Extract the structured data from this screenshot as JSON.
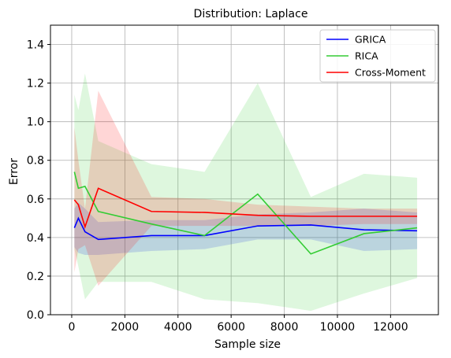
{
  "chart_data": {
    "type": "line",
    "title": "Distribution: Laplace",
    "xlabel": "Sample size",
    "ylabel": "Error",
    "xlim": [
      -800,
      13800
    ],
    "ylim": [
      0.0,
      1.5
    ],
    "xticks": [
      0,
      2000,
      4000,
      6000,
      8000,
      10000,
      12000
    ],
    "yticks": [
      0.0,
      0.2,
      0.4,
      0.6,
      0.8,
      1.0,
      1.2,
      1.4
    ],
    "xtick_labels": [
      "0",
      "2000",
      "4000",
      "6000",
      "8000",
      "10000",
      "12000"
    ],
    "ytick_labels": [
      "0.0",
      "0.2",
      "0.4",
      "0.6",
      "0.8",
      "1.0",
      "1.2",
      "1.4"
    ],
    "grid": true,
    "legend_position": "top-right",
    "x": [
      100,
      250,
      500,
      1000,
      3000,
      5000,
      7000,
      9000,
      11000,
      13000
    ],
    "series": [
      {
        "name": "GRICA",
        "color": "#0000ff",
        "values": [
          0.45,
          0.5,
          0.43,
          0.39,
          0.41,
          0.41,
          0.46,
          0.465,
          0.44,
          0.435
        ],
        "lower": [
          0.35,
          0.32,
          0.31,
          0.31,
          0.33,
          0.34,
          0.39,
          0.39,
          0.33,
          0.34
        ],
        "upper": [
          0.55,
          0.58,
          0.55,
          0.48,
          0.49,
          0.49,
          0.52,
          0.53,
          0.55,
          0.53
        ]
      },
      {
        "name": "RICA",
        "color": "#33cc33",
        "values": [
          0.74,
          0.655,
          0.665,
          0.535,
          0.47,
          0.41,
          0.625,
          0.315,
          0.42,
          0.45
        ],
        "lower": [
          0.34,
          0.25,
          0.08,
          0.17,
          0.17,
          0.08,
          0.06,
          0.02,
          0.11,
          0.19
        ],
        "upper": [
          1.14,
          1.06,
          1.25,
          0.9,
          0.78,
          0.74,
          1.2,
          0.61,
          0.73,
          0.71
        ]
      },
      {
        "name": "Cross-Moment",
        "color": "#ff0000",
        "values": [
          0.595,
          0.57,
          0.455,
          0.655,
          0.535,
          0.53,
          0.515,
          0.51,
          0.51,
          0.51
        ],
        "lower": [
          0.22,
          0.34,
          0.36,
          0.15,
          0.46,
          0.46,
          0.46,
          0.46,
          0.47,
          0.47
        ],
        "upper": [
          0.97,
          0.8,
          0.55,
          1.16,
          0.61,
          0.6,
          0.57,
          0.56,
          0.55,
          0.55
        ]
      }
    ]
  }
}
